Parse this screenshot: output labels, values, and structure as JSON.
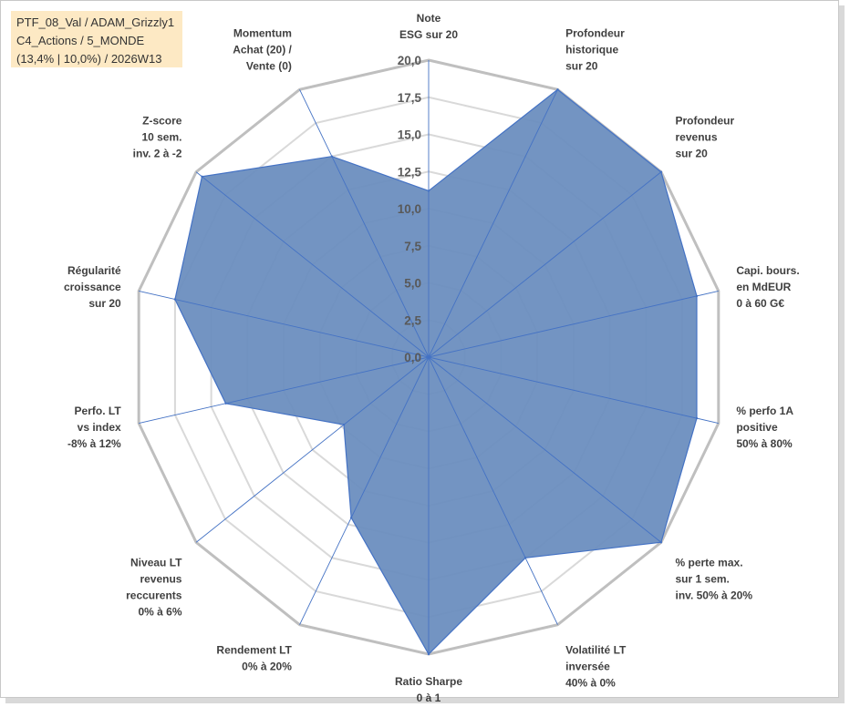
{
  "info": {
    "line1": "PTF_08_Val / ADAM_Grizzly1",
    "line2": "C4_Actions / 5_MONDE",
    "line3": "(13,4% | 10,0%) / 2026W13"
  },
  "chart_data": {
    "type": "radar",
    "min": 0,
    "max": 20,
    "ticks": [
      "0,0",
      "2,5",
      "5,0",
      "7,5",
      "10,0",
      "12,5",
      "15,0",
      "17,5",
      "20,0"
    ],
    "grid": true,
    "axes": [
      [
        "Note",
        "ESG sur 20"
      ],
      [
        "Profondeur",
        "historique",
        "sur 20"
      ],
      [
        "Profondeur",
        "revenus",
        "sur 20"
      ],
      [
        "Capi. bours.",
        "en MdEUR",
        "0 à 60 G€"
      ],
      [
        "% perfo 1A",
        "positive",
        "50% à 80%"
      ],
      [
        "% perte max.",
        "sur 1 sem.",
        "inv. 50% à 20%"
      ],
      [
        "Volatilité LT",
        "inversée",
        "40% à 0%"
      ],
      [
        "Ratio Sharpe",
        "0 à 1"
      ],
      [
        "Rendement LT",
        "0% à 20%"
      ],
      [
        "Niveau LT",
        "revenus",
        "reccurents",
        "0% à 6%"
      ],
      [
        "Perfo. LT",
        "vs index",
        "-8% à 12%"
      ],
      [
        "Régularité",
        "croissance",
        "sur 20"
      ],
      [
        "Z-score",
        "10 sem.",
        "inv. 2 à -2"
      ],
      [
        "Momentum",
        "Achat (20) /",
        "Vente (0)"
      ]
    ],
    "series": [
      {
        "values": [
          11.2,
          20.0,
          20.0,
          18.5,
          18.5,
          20.0,
          15.0,
          20.0,
          12.0,
          7.3,
          14.0,
          17.5,
          19.5,
          15.0
        ],
        "fill": "#6c8ebf",
        "stroke": "#4472c4"
      }
    ]
  }
}
